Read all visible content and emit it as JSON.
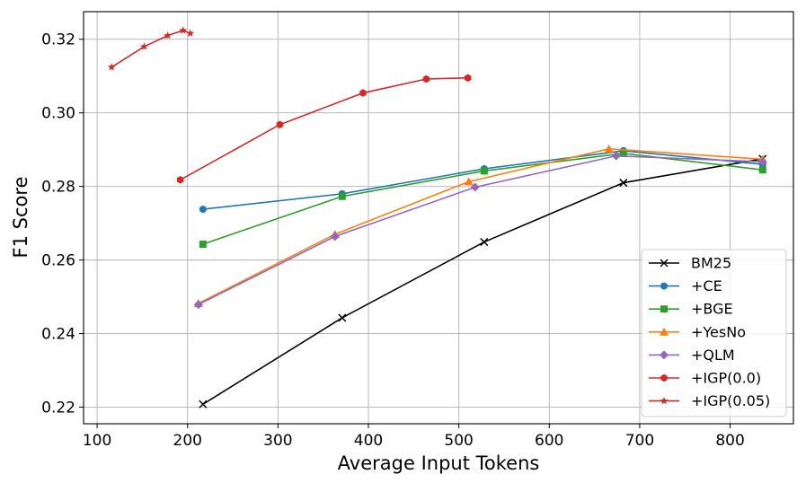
{
  "chart_data": {
    "type": "line",
    "title": "",
    "xlabel": "Average Input Tokens",
    "ylabel": "F1 Score",
    "xlim": [
      85,
      870
    ],
    "ylim": [
      0.2155,
      0.3275
    ],
    "xticks": [
      100,
      200,
      300,
      400,
      500,
      600,
      700,
      800
    ],
    "yticks": [
      0.22,
      0.24,
      0.26,
      0.28,
      0.3,
      0.32
    ],
    "grid": true,
    "legend_position": "lower-right",
    "series": [
      {
        "name": "BM25",
        "color": "#000000",
        "marker": "x",
        "x": [
          217,
          371,
          528,
          682,
          836
        ],
        "y": [
          0.2208,
          0.2443,
          0.2649,
          0.281,
          0.2875
        ]
      },
      {
        "name": "+CE",
        "color": "#1f77b4",
        "marker": "circle",
        "x": [
          217,
          371,
          528,
          682,
          836
        ],
        "y": [
          0.2738,
          0.278,
          0.2848,
          0.2897,
          0.286
        ]
      },
      {
        "name": "+BGE",
        "color": "#2ca02c",
        "marker": "square",
        "x": [
          217,
          371,
          528,
          682,
          836
        ],
        "y": [
          0.2643,
          0.2773,
          0.2842,
          0.289,
          0.2845
        ]
      },
      {
        "name": "+YesNo",
        "color": "#ff7f0e",
        "marker": "triangle",
        "x": [
          212,
          363,
          511,
          666,
          836
        ],
        "y": [
          0.2482,
          0.267,
          0.2813,
          0.2902,
          0.2874
        ]
      },
      {
        "name": "+QLM",
        "color": "#9467bd",
        "marker": "diamond",
        "x": [
          212,
          363,
          518,
          674,
          836
        ],
        "y": [
          0.2479,
          0.2664,
          0.2798,
          0.2883,
          0.2867
        ]
      },
      {
        "name": "+IGP(0.0)",
        "color": "#d62728",
        "marker": "hexagon",
        "x": [
          192,
          302,
          394,
          464,
          510
        ],
        "y": [
          0.2818,
          0.2968,
          0.3054,
          0.3092,
          0.3095
        ]
      },
      {
        "name": "+IGP(0.05)",
        "color": "#d62728",
        "marker": "star",
        "x": [
          116,
          152,
          178,
          195,
          203
        ],
        "y": [
          0.3124,
          0.318,
          0.321,
          0.3224,
          0.3216
        ]
      }
    ]
  }
}
